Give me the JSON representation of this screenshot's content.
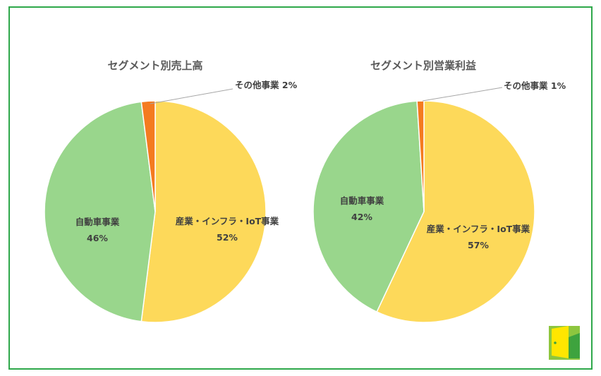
{
  "colors": {
    "frame": "#2ea84a",
    "industry": "#fdd95a",
    "auto": "#99d68c",
    "other": "#f47b20",
    "text": "#404040",
    "title": "#595959"
  },
  "logo": {
    "icon": "door-logo-icon"
  },
  "chart_data": [
    {
      "type": "pie",
      "title": "セグメント別売上高",
      "slices": [
        {
          "label": "産業・インフラ・IoT事業",
          "value": 52,
          "pct": "52%",
          "color": "#fdd95a"
        },
        {
          "label": "自動車事業",
          "value": 46,
          "pct": "46%",
          "color": "#99d68c"
        },
        {
          "label": "その他事業",
          "value": 2,
          "pct": "2%",
          "color": "#f47b20"
        }
      ]
    },
    {
      "type": "pie",
      "title": "セグメント別営業利益",
      "slices": [
        {
          "label": "産業・インフラ・IoT事業",
          "value": 57,
          "pct": "57%",
          "color": "#fdd95a"
        },
        {
          "label": "自動車事業",
          "value": 42,
          "pct": "42%",
          "color": "#99d68c"
        },
        {
          "label": "その他事業",
          "value": 1,
          "pct": "1%",
          "color": "#f47b20"
        }
      ]
    }
  ]
}
